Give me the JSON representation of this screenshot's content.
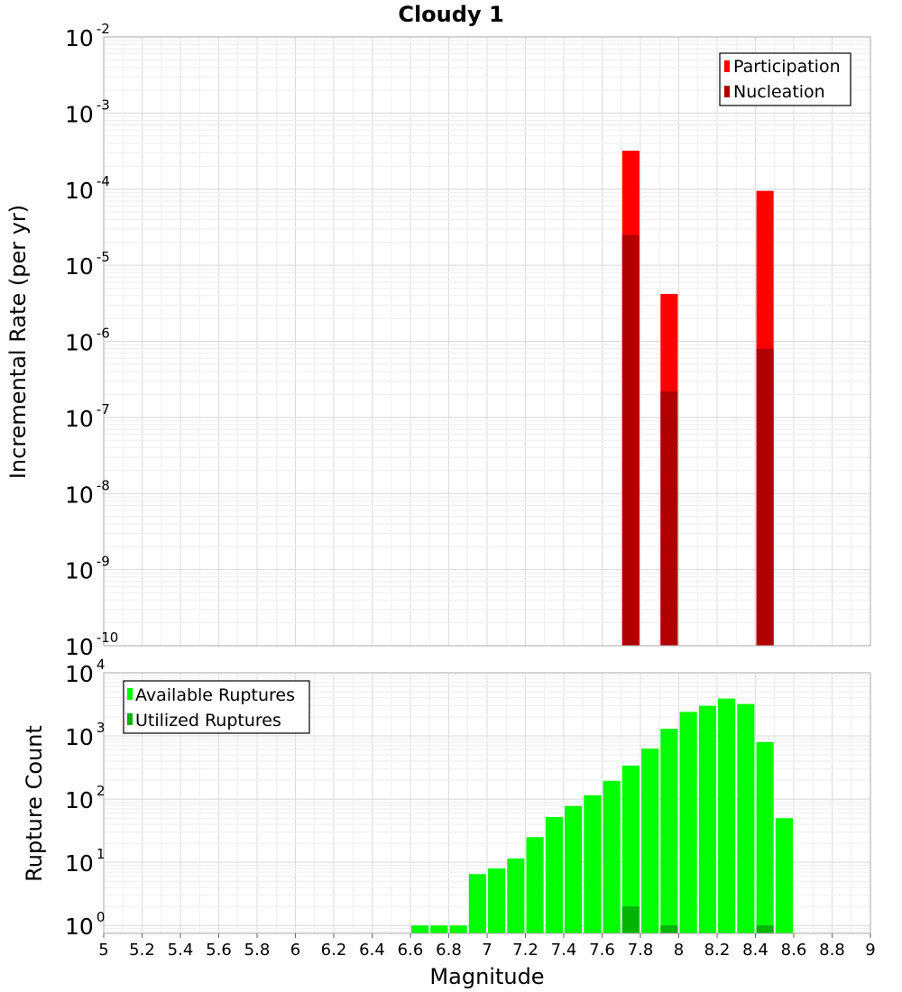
{
  "chart_data": [
    {
      "type": "bar",
      "title": "Cloudy 1",
      "ylabel": "Incremental Rate (per yr)",
      "xlabel": "",
      "y_scale": "log",
      "ylim": [
        1e-10,
        0.01
      ],
      "y_ticks": [
        {
          "base": "10",
          "exp": "-2"
        },
        {
          "base": "10",
          "exp": "-3"
        },
        {
          "base": "10",
          "exp": "-4"
        },
        {
          "base": "10",
          "exp": "-5"
        },
        {
          "base": "10",
          "exp": "-6"
        },
        {
          "base": "10",
          "exp": "-7"
        },
        {
          "base": "10",
          "exp": "-8"
        },
        {
          "base": "10",
          "exp": "-9"
        },
        {
          "base": "10",
          "exp": "-10"
        }
      ],
      "xlim": [
        5,
        9
      ],
      "bin_width": 0.1,
      "legend": {
        "placement": "top-right"
      },
      "grid": true,
      "series": [
        {
          "name": "Participation",
          "color": "#ff0000",
          "x": [
            7.75,
            7.95,
            8.45
          ],
          "values": [
            0.00032,
            4.2e-06,
            9.5e-05
          ]
        },
        {
          "name": "Nucleation",
          "color": "#b00000",
          "x": [
            7.75,
            7.95,
            8.45
          ],
          "values": [
            2.5e-05,
            2.2e-07,
            8e-07
          ]
        }
      ]
    },
    {
      "type": "bar",
      "title": "",
      "ylabel": "Rupture Count",
      "xlabel": "Magnitude",
      "y_scale": "log",
      "ylim": [
        0.75,
        10000
      ],
      "y_ticks": [
        {
          "base": "10",
          "exp": "4"
        },
        {
          "base": "10",
          "exp": "3"
        },
        {
          "base": "10",
          "exp": "2"
        },
        {
          "base": "10",
          "exp": "1"
        },
        {
          "base": "10",
          "exp": "0"
        }
      ],
      "xlim": [
        5,
        9
      ],
      "x_ticks": [
        "5",
        "5.2",
        "5.4",
        "5.6",
        "5.8",
        "6",
        "6.2",
        "6.4",
        "6.6",
        "6.8",
        "7",
        "7.2",
        "7.4",
        "7.6",
        "7.8",
        "8",
        "8.2",
        "8.4",
        "8.6",
        "8.8",
        "9"
      ],
      "bin_width": 0.1,
      "legend": {
        "placement": "top-left"
      },
      "grid": true,
      "series": [
        {
          "name": "Available Ruptures",
          "color": "#00ff00",
          "x": [
            6.65,
            6.75,
            6.85,
            6.95,
            7.05,
            7.15,
            7.25,
            7.35,
            7.45,
            7.55,
            7.65,
            7.75,
            7.85,
            7.95,
            8.05,
            8.15,
            8.25,
            8.35,
            8.45,
            8.55
          ],
          "values": [
            1,
            1,
            1,
            6.5,
            8,
            11.5,
            25,
            52,
            78,
            115,
            195,
            340,
            630,
            1300,
            2400,
            3000,
            3900,
            3200,
            800,
            50
          ]
        },
        {
          "name": "Utilized Ruptures",
          "color": "#00b400",
          "x": [
            7.75,
            7.95,
            8.45
          ],
          "values": [
            2,
            1,
            1
          ]
        }
      ]
    }
  ]
}
